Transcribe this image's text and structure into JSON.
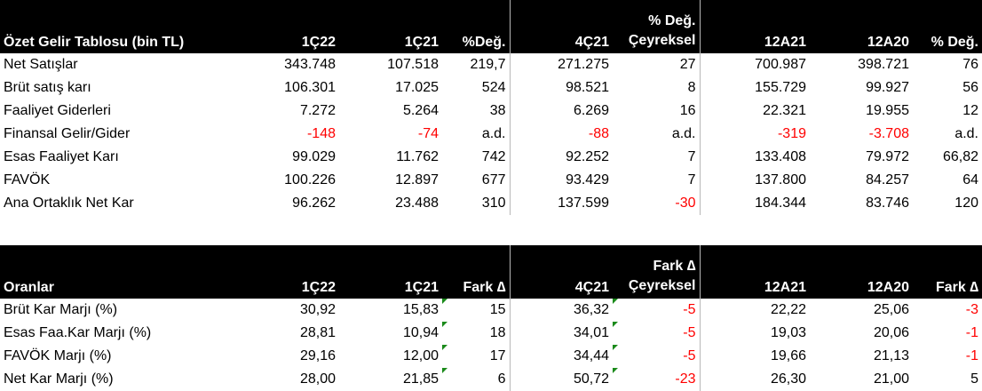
{
  "income": {
    "title": "Özet Gelir Tablosu (bin TL)",
    "headers": {
      "c1": "1Ç22",
      "c2": "1Ç21",
      "c3": "%Değ.",
      "c4": "4Ç21",
      "c5_line1": "% Değ.",
      "c5_line2": "Çeyreksel",
      "c6": "12A21",
      "c7": "12A20",
      "c8": "% Değ."
    },
    "rows": [
      {
        "label": "Net Satışlar",
        "v": [
          "343.748",
          "107.518",
          "219,7",
          "271.275",
          "27",
          "700.987",
          "398.721",
          "76"
        ]
      },
      {
        "label": "Brüt satış karı",
        "v": [
          "106.301",
          "17.025",
          "524",
          "98.521",
          "8",
          "155.729",
          "99.927",
          "56"
        ]
      },
      {
        "label": "Faaliyet Giderleri",
        "v": [
          "7.272",
          "5.264",
          "38",
          "6.269",
          "16",
          "22.321",
          "19.955",
          "12"
        ]
      },
      {
        "label": "Finansal Gelir/Gider",
        "v": [
          "-148",
          "-74",
          "a.d.",
          "-88",
          "a.d.",
          "-319",
          "-3.708",
          "a.d."
        ]
      },
      {
        "label": "Esas Faaliyet Karı",
        "v": [
          "99.029",
          "11.762",
          "742",
          "92.252",
          "7",
          "133.408",
          "79.972",
          "66,82"
        ]
      },
      {
        "label": "FAVÖK",
        "v": [
          "100.226",
          "12.897",
          "677",
          "93.429",
          "7",
          "137.800",
          "84.257",
          "64"
        ]
      },
      {
        "label": "Ana Ortaklık Net Kar",
        "v": [
          "96.262",
          "23.488",
          "310",
          "137.599",
          "-30",
          "184.344",
          "83.746",
          "120"
        ]
      }
    ]
  },
  "ratios": {
    "title": "Oranlar",
    "headers": {
      "c1": "1Ç22",
      "c2": "1Ç21",
      "c3": "Fark ∆",
      "c4": "4Ç21",
      "c5_line1": "Fark ∆",
      "c5_line2": "Çeyreksel",
      "c6": "12A21",
      "c7": "12A20",
      "c8": "Fark ∆"
    },
    "rows": [
      {
        "label": "Brüt Kar Marjı (%)",
        "v": [
          "30,92",
          "15,83",
          "15",
          "36,32",
          "-5",
          "22,22",
          "25,06",
          "-3"
        ]
      },
      {
        "label": "Esas Faa.Kar Marjı (%)",
        "v": [
          "28,81",
          "10,94",
          "18",
          "34,01",
          "-5",
          "19,03",
          "20,06",
          "-1"
        ]
      },
      {
        "label": "FAVÖK Marjı (%)",
        "v": [
          "29,16",
          "12,00",
          "17",
          "34,44",
          "-5",
          "19,66",
          "21,13",
          "-1"
        ]
      },
      {
        "label": "Net Kar Marjı (%)",
        "v": [
          "28,00",
          "21,85",
          "6",
          "50,72",
          "-23",
          "26,30",
          "21,00",
          "5"
        ]
      }
    ]
  },
  "colors": {
    "header_bg": "#000000",
    "header_text": "#ffffff",
    "negative": "#ff0000",
    "comment_marker": "#1a8a1a"
  }
}
